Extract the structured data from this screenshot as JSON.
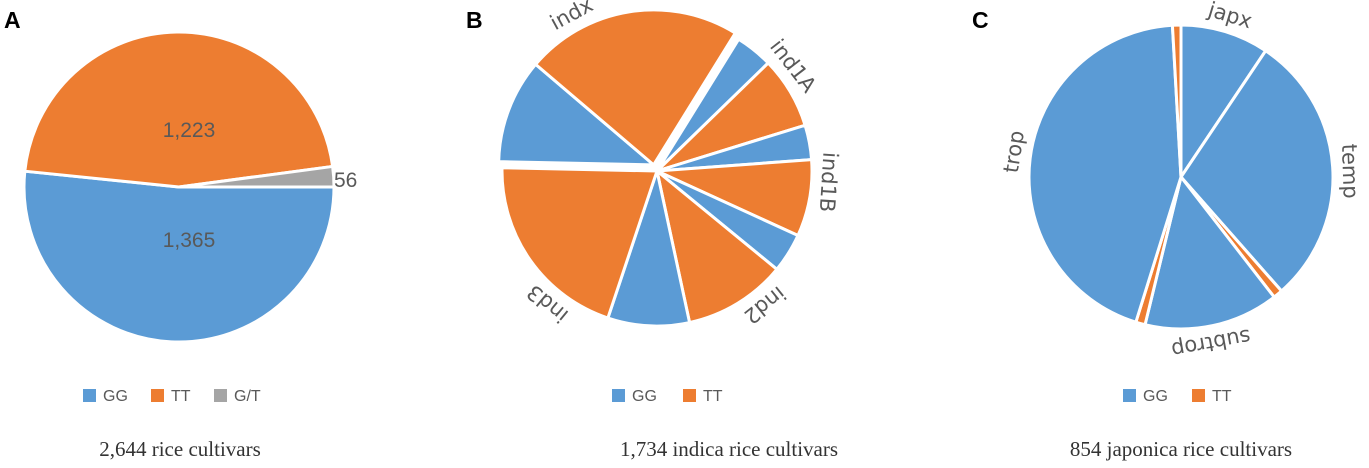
{
  "colors": {
    "GG": "#5b9bd5",
    "TT": "#ed7d31",
    "G/T": "#a5a5a5"
  },
  "chart_data": [
    {
      "type": "pie",
      "panel": "A",
      "slices": [
        {
          "label": "GG",
          "value": 1365
        },
        {
          "label": "TT",
          "value": 1223
        },
        {
          "label": "G/T",
          "value": 56
        }
      ],
      "value_labels": [
        "1,365",
        "1,223",
        "56"
      ],
      "legend": [
        "GG",
        "TT",
        "G/T"
      ],
      "legend_position": "bottom",
      "caption": "2,644 rice cultivars"
    },
    {
      "type": "pie",
      "panel": "B",
      "groups": [
        {
          "name": "indx",
          "GG": 0.109,
          "TT": 0.226
        },
        {
          "name": "ind1A",
          "GG": 0.039,
          "TT": 0.075
        },
        {
          "name": "ind1B",
          "GG": 0.036,
          "TT": 0.08
        },
        {
          "name": "ind2",
          "GG": 0.041,
          "TT": 0.107
        },
        {
          "name": "ind3",
          "GG": 0.085,
          "TT": 0.202
        }
      ],
      "legend": [
        "GG",
        "TT"
      ],
      "legend_position": "bottom",
      "caption": "1,734 indica rice cultivars"
    },
    {
      "type": "pie",
      "panel": "C",
      "groups": [
        {
          "name": "japx",
          "GG": 0.094,
          "TT": 0.0
        },
        {
          "name": "temp",
          "GG": 0.291,
          "TT": 0.01
        },
        {
          "name": "subtrop",
          "GG": 0.143,
          "TT": 0.01
        },
        {
          "name": "trop",
          "GG": 0.443,
          "TT": 0.009
        }
      ],
      "legend": [
        "GG",
        "TT"
      ],
      "legend_position": "bottom",
      "caption": "854 japonica rice cultivars"
    }
  ]
}
